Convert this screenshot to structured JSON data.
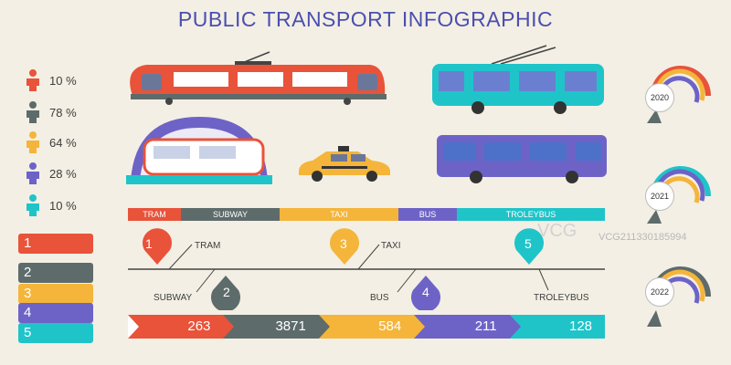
{
  "title": "PUBLIC TRANSPORT INFOGRAPHIC",
  "people": [
    {
      "percent": "10 %",
      "color": "#e8533a"
    },
    {
      "percent": "78 %",
      "color": "#5e6b6b"
    },
    {
      "percent": "64 %",
      "color": "#f4b53a"
    },
    {
      "percent": "28 %",
      "color": "#6d63c7"
    },
    {
      "percent": "10 %",
      "color": "#1fc4c9"
    }
  ],
  "modes": [
    {
      "label": "TRAM",
      "color": "#e8533a"
    },
    {
      "label": "SUBWAY",
      "color": "#5e6b6b"
    },
    {
      "label": "TAXI",
      "color": "#f4b53a"
    },
    {
      "label": "BUS",
      "color": "#6d63c7"
    },
    {
      "label": "TROLEYBUS",
      "color": "#1fc4c9"
    }
  ],
  "timeline": [
    {
      "num": "1",
      "label": "TRAM"
    },
    {
      "num": "2",
      "label": "SUBWAY"
    },
    {
      "num": "3",
      "label": "TAXI"
    },
    {
      "num": "4",
      "label": "BUS"
    },
    {
      "num": "5",
      "label": "TROLEYBUS"
    }
  ],
  "stats": [
    "263",
    "3871",
    "584",
    "211",
    "128"
  ],
  "numbered_list": [
    "1",
    "2",
    "3",
    "4",
    "5"
  ],
  "years": [
    "2020",
    "2021",
    "2022"
  ],
  "watermark": {
    "logo": "VCG",
    "text": "VCG211330185994"
  }
}
